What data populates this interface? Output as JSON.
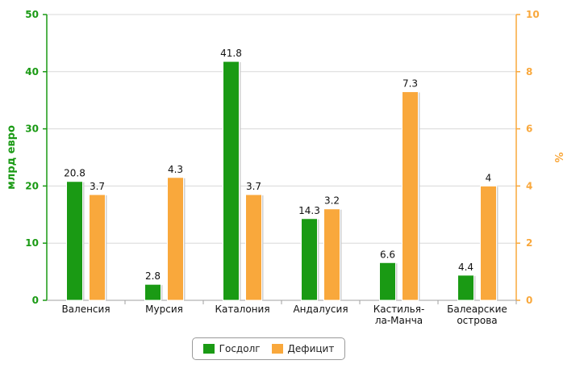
{
  "chart_data": {
    "type": "bar",
    "categories": [
      "Валенсия",
      "Мурсия",
      "Каталония",
      "Андалусия",
      "Кастилья-ла-Манча",
      "Балеарские острова"
    ],
    "category_lines": [
      [
        "Валенсия"
      ],
      [
        "Мурсия"
      ],
      [
        "Каталония"
      ],
      [
        "Андалусия"
      ],
      [
        "Кастилья-",
        "ла-Манча"
      ],
      [
        "Балеарские",
        "острова"
      ]
    ],
    "series": [
      {
        "name": "Госдолг",
        "axis": "left",
        "color": "#1a9a14",
        "values": [
          20.8,
          2.8,
          41.8,
          14.3,
          6.6,
          4.4
        ],
        "labels": [
          "20.8",
          "2.8",
          "41.8",
          "14.3",
          "6.6",
          "4.4"
        ]
      },
      {
        "name": "Дефицит",
        "axis": "right",
        "color": "#f9a83c",
        "values": [
          3.7,
          4.3,
          3.7,
          3.2,
          7.3,
          4
        ],
        "labels": [
          "3.7",
          "4.3",
          "3.7",
          "3.2",
          "7.3",
          "4"
        ]
      }
    ],
    "ylabel": "млрд евро",
    "ylabel_color": "#1a9a14",
    "ylim": [
      0,
      50
    ],
    "yticks": [
      0,
      10,
      20,
      30,
      40,
      50
    ],
    "y2label": "%",
    "y2label_color": "#f9a83c",
    "y2lim": [
      0,
      10
    ],
    "y2ticks": [
      0,
      2,
      4,
      6,
      8,
      10
    ],
    "grid": true,
    "legend_position": "bottom-center"
  }
}
